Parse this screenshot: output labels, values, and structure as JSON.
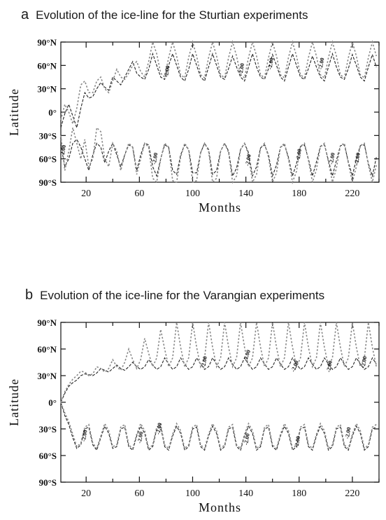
{
  "panels": [
    {
      "letter": "a",
      "title": "Evolution of the ice-line for the Sturtian experiments"
    },
    {
      "letter": "b",
      "title": "Evolution of the ice-line for the Varangian experiments"
    }
  ],
  "chart_data": [
    {
      "type": "line",
      "title": "Evolution of the ice-line for the Sturtian experiments",
      "xlabel": "Months",
      "ylabel": "Latitude",
      "xlim": [
        1,
        240
      ],
      "ylim": [
        -90,
        90
      ],
      "xticks": [
        20,
        60,
        100,
        140,
        180,
        220
      ],
      "yticks": [
        90,
        60,
        30,
        0,
        -30,
        -60,
        -90
      ],
      "ytick_labels": [
        "90°N",
        "60°N",
        "30°N",
        "0°",
        "30°S",
        "60°S",
        "90°S"
      ],
      "grid": false,
      "colors": {
        "series_1": "#222222",
        "series_2": "#888888"
      },
      "contour_labels": [
        "-2.00",
        "-2.00",
        "-2.00",
        "-2.00",
        "-2.00",
        "-2.00",
        "-2.00",
        "-2.00",
        "-2.00",
        "-2.00"
      ],
      "series": [
        {
          "style": "dashed-black",
          "x": [
            1,
            4,
            7,
            10,
            13,
            16,
            19,
            22,
            25,
            28,
            31,
            34,
            37,
            40,
            43,
            46,
            49,
            52,
            55,
            58,
            61,
            64,
            67,
            70,
            73,
            76,
            79,
            82,
            85,
            88,
            91,
            94,
            97,
            100,
            103,
            106,
            109,
            112,
            115,
            118,
            121,
            124,
            127,
            130,
            133,
            136,
            139,
            142,
            145,
            148,
            151,
            154,
            157,
            160,
            163,
            166,
            169,
            172,
            175,
            178,
            181,
            184,
            187,
            190,
            193,
            196,
            199,
            202,
            205,
            208,
            211,
            214,
            217,
            220,
            223,
            226,
            229,
            232,
            235,
            238
          ],
          "y_north": [
            -20,
            -2,
            10,
            -5,
            -20,
            5,
            25,
            18,
            20,
            30,
            38,
            32,
            28,
            45,
            40,
            35,
            45,
            55,
            65,
            50,
            45,
            42,
            55,
            75,
            60,
            45,
            42,
            60,
            75,
            60,
            45,
            40,
            55,
            75,
            60,
            45,
            40,
            58,
            75,
            60,
            45,
            42,
            56,
            72,
            58,
            45,
            40,
            58,
            75,
            58,
            45,
            42,
            56,
            74,
            60,
            45,
            40,
            58,
            75,
            60,
            45,
            42,
            56,
            72,
            58,
            45,
            40,
            58,
            75,
            58,
            45,
            42,
            56,
            74,
            60,
            45,
            40,
            58,
            74,
            58
          ],
          "y_south": [
            -40,
            -70,
            -60,
            -40,
            -35,
            -45,
            -60,
            -75,
            -55,
            -40,
            -45,
            -65,
            -50,
            -40,
            -55,
            -70,
            -55,
            -42,
            -45,
            -75,
            -55,
            -40,
            -42,
            -70,
            -82,
            -60,
            -42,
            -45,
            -75,
            -80,
            -55,
            -42,
            -48,
            -78,
            -78,
            -52,
            -40,
            -48,
            -80,
            -75,
            -50,
            -40,
            -50,
            -82,
            -72,
            -48,
            -40,
            -52,
            -82,
            -70,
            -46,
            -42,
            -55,
            -82,
            -68,
            -45,
            -42,
            -58,
            -82,
            -66,
            -44,
            -42,
            -60,
            -82,
            -64,
            -44,
            -42,
            -62,
            -82,
            -62,
            -43,
            -42,
            -64,
            -82,
            -60,
            -43,
            -42,
            -66,
            -82,
            -58
          ]
        },
        {
          "style": "dotted-grey",
          "x": [
            1,
            4,
            7,
            10,
            13,
            16,
            19,
            22,
            25,
            28,
            31,
            34,
            37,
            40,
            43,
            46,
            49,
            52,
            55,
            58,
            61,
            64,
            67,
            70,
            73,
            76,
            79,
            82,
            85,
            88,
            91,
            94,
            97,
            100,
            103,
            106,
            109,
            112,
            115,
            118,
            121,
            124,
            127,
            130,
            133,
            136,
            139,
            142,
            145,
            148,
            151,
            154,
            157,
            160,
            163,
            166,
            169,
            172,
            175,
            178,
            181,
            184,
            187,
            190,
            193,
            196,
            199,
            202,
            205,
            208,
            211,
            214,
            217,
            220,
            223,
            226,
            229,
            232,
            235,
            238
          ],
          "y_north": [
            -10,
            10,
            0,
            -15,
            5,
            35,
            40,
            25,
            25,
            40,
            45,
            30,
            25,
            40,
            55,
            45,
            42,
            50,
            60,
            65,
            52,
            45,
            65,
            90,
            75,
            50,
            45,
            70,
            90,
            72,
            48,
            44,
            70,
            90,
            72,
            48,
            44,
            70,
            90,
            72,
            48,
            44,
            70,
            90,
            72,
            48,
            44,
            70,
            90,
            72,
            48,
            44,
            70,
            90,
            72,
            48,
            44,
            70,
            90,
            72,
            48,
            44,
            70,
            90,
            72,
            48,
            44,
            70,
            90,
            72,
            48,
            44,
            70,
            90,
            72,
            48,
            44,
            70,
            90,
            72
          ],
          "y_south": [
            -30,
            -75,
            -50,
            -20,
            -40,
            -60,
            -35,
            -70,
            -60,
            -20,
            -25,
            -60,
            -70,
            -40,
            -50,
            -75,
            -55,
            -40,
            -45,
            -80,
            -60,
            -40,
            -45,
            -85,
            -90,
            -60,
            -40,
            -45,
            -88,
            -90,
            -58,
            -40,
            -48,
            -90,
            -88,
            -52,
            -40,
            -50,
            -90,
            -85,
            -50,
            -40,
            -52,
            -90,
            -82,
            -48,
            -40,
            -55,
            -90,
            -80,
            -46,
            -40,
            -58,
            -90,
            -78,
            -45,
            -40,
            -60,
            -90,
            -76,
            -44,
            -40,
            -62,
            -90,
            -74,
            -44,
            -40,
            -64,
            -90,
            -72,
            -43,
            -40,
            -66,
            -90,
            -70,
            -43,
            -40,
            -68,
            -90,
            -68
          ]
        }
      ]
    },
    {
      "type": "line",
      "title": "Evolution of the ice-line for the Varangian experiments",
      "xlabel": "Months",
      "ylabel": "Latitude",
      "xlim": [
        1,
        240
      ],
      "ylim": [
        -90,
        90
      ],
      "xticks": [
        20,
        60,
        100,
        140,
        180,
        220
      ],
      "yticks": [
        90,
        60,
        30,
        0,
        -30,
        -60,
        -90
      ],
      "ytick_labels": [
        "90°N",
        "60°N",
        "30°N",
        "0°",
        "30°S",
        "60°S",
        "90°S"
      ],
      "grid": false,
      "colors": {
        "series_1": "#222222",
        "series_2": "#888888"
      },
      "contour_labels": [
        "-2.00",
        "-2.00",
        "-2.00",
        "-2.00",
        "-2.00",
        "-2.00",
        "-2.00",
        "-2.00",
        "-2.00",
        "-2.00",
        "-2.00"
      ],
      "series": [
        {
          "style": "dashed-black",
          "x": [
            1,
            4,
            7,
            10,
            13,
            16,
            19,
            22,
            25,
            28,
            31,
            34,
            37,
            40,
            43,
            46,
            49,
            52,
            55,
            58,
            61,
            64,
            67,
            70,
            73,
            76,
            79,
            82,
            85,
            88,
            91,
            94,
            97,
            100,
            103,
            106,
            109,
            112,
            115,
            118,
            121,
            124,
            127,
            130,
            133,
            136,
            139,
            142,
            145,
            148,
            151,
            154,
            157,
            160,
            163,
            166,
            169,
            172,
            175,
            178,
            181,
            184,
            187,
            190,
            193,
            196,
            199,
            202,
            205,
            208,
            211,
            214,
            217,
            220,
            223,
            226,
            229,
            232,
            235,
            238
          ],
          "y_north": [
            0,
            10,
            18,
            22,
            25,
            30,
            32,
            31,
            30,
            33,
            38,
            36,
            34,
            38,
            42,
            38,
            36,
            40,
            45,
            40,
            37,
            40,
            48,
            42,
            37,
            40,
            50,
            43,
            37,
            40,
            50,
            43,
            37,
            40,
            50,
            43,
            37,
            40,
            50,
            43,
            37,
            40,
            50,
            43,
            37,
            40,
            50,
            43,
            37,
            40,
            50,
            43,
            37,
            40,
            50,
            43,
            37,
            40,
            50,
            43,
            37,
            40,
            50,
            43,
            37,
            40,
            50,
            43,
            37,
            40,
            50,
            43,
            37,
            40,
            50,
            43,
            37,
            40,
            50,
            43
          ],
          "y_south": [
            0,
            -15,
            -25,
            -40,
            -52,
            -48,
            -30,
            -28,
            -48,
            -54,
            -40,
            -27,
            -35,
            -52,
            -50,
            -30,
            -28,
            -50,
            -54,
            -38,
            -27,
            -35,
            -54,
            -50,
            -30,
            -28,
            -50,
            -54,
            -38,
            -27,
            -35,
            -54,
            -50,
            -30,
            -28,
            -50,
            -54,
            -38,
            -27,
            -35,
            -54,
            -50,
            -30,
            -28,
            -50,
            -54,
            -38,
            -27,
            -35,
            -54,
            -50,
            -30,
            -28,
            -50,
            -54,
            -38,
            -27,
            -35,
            -54,
            -50,
            -30,
            -28,
            -50,
            -54,
            -38,
            -27,
            -35,
            -54,
            -50,
            -30,
            -28,
            -50,
            -54,
            -38,
            -27,
            -35,
            -54,
            -50,
            -30,
            -28
          ]
        },
        {
          "style": "dotted-grey",
          "x": [
            1,
            4,
            7,
            10,
            13,
            16,
            19,
            22,
            25,
            28,
            31,
            34,
            37,
            40,
            43,
            46,
            49,
            52,
            55,
            58,
            61,
            64,
            67,
            70,
            73,
            76,
            79,
            82,
            85,
            88,
            91,
            94,
            97,
            100,
            103,
            106,
            109,
            112,
            115,
            118,
            121,
            124,
            127,
            130,
            133,
            136,
            139,
            142,
            145,
            148,
            151,
            154,
            157,
            160,
            163,
            166,
            169,
            172,
            175,
            178,
            181,
            184,
            187,
            190,
            193,
            196,
            199,
            202,
            205,
            208,
            211,
            214,
            217,
            220,
            223,
            226,
            229,
            232,
            235,
            238
          ],
          "y_north": [
            0,
            12,
            20,
            26,
            30,
            35,
            34,
            30,
            32,
            40,
            38,
            34,
            38,
            48,
            40,
            36,
            45,
            60,
            48,
            38,
            48,
            72,
            55,
            40,
            50,
            82,
            60,
            40,
            50,
            90,
            62,
            40,
            50,
            90,
            62,
            40,
            50,
            90,
            62,
            40,
            50,
            90,
            62,
            40,
            50,
            90,
            62,
            40,
            50,
            90,
            62,
            40,
            50,
            90,
            62,
            40,
            50,
            90,
            62,
            40,
            50,
            90,
            62,
            40,
            50,
            90,
            62,
            40,
            50,
            90,
            62,
            40,
            50,
            90,
            62,
            40,
            50,
            90,
            62,
            40
          ],
          "y_south": [
            0,
            -12,
            -22,
            -36,
            -50,
            -46,
            -28,
            -25,
            -46,
            -52,
            -38,
            -24,
            -32,
            -50,
            -48,
            -28,
            -25,
            -48,
            -52,
            -36,
            -24,
            -32,
            -52,
            -48,
            -28,
            -25,
            -48,
            -52,
            -36,
            -24,
            -32,
            -52,
            -48,
            -28,
            -25,
            -48,
            -52,
            -36,
            -24,
            -32,
            -52,
            -48,
            -28,
            -25,
            -48,
            -52,
            -36,
            -24,
            -32,
            -52,
            -48,
            -28,
            -25,
            -48,
            -52,
            -36,
            -24,
            -32,
            -52,
            -48,
            -28,
            -25,
            -48,
            -52,
            -36,
            -24,
            -32,
            -52,
            -48,
            -28,
            -25,
            -48,
            -52,
            -36,
            -24,
            -32,
            -52,
            -48,
            -28,
            -25
          ]
        }
      ]
    }
  ]
}
